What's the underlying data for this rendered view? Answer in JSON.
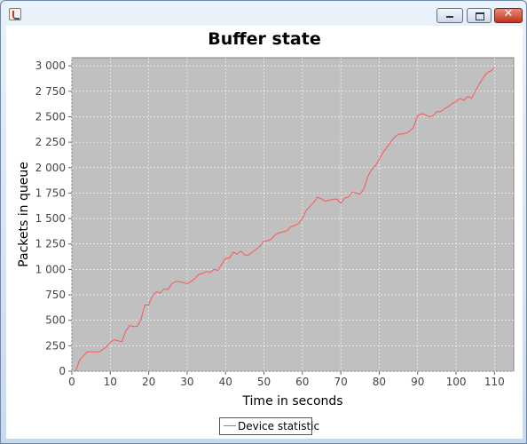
{
  "window": {
    "title": "",
    "icon": "java-cup-icon",
    "buttons": {
      "minimize_icon": "minimize-icon",
      "maximize_icon": "maximize-icon",
      "close_icon": "close-icon",
      "close_glyph": "✕"
    }
  },
  "chart_data": {
    "type": "line",
    "title": "Buffer state",
    "xlabel": "Time in seconds",
    "ylabel": "Packets in queue",
    "xlim": [
      0,
      115
    ],
    "ylim": [
      0,
      3080
    ],
    "xticks": [
      0,
      10,
      20,
      30,
      40,
      50,
      60,
      70,
      80,
      90,
      100,
      110
    ],
    "yticks": [
      0,
      250,
      500,
      750,
      1000,
      1250,
      1500,
      1750,
      2000,
      2250,
      2500,
      2750,
      3000
    ],
    "ytick_labels": [
      "0",
      "250",
      "500",
      "750",
      "1 000",
      "1 250",
      "1 500",
      "1 750",
      "2 000",
      "2 250",
      "2 500",
      "2 750",
      "3 000"
    ],
    "grid": true,
    "plot_background": "#c0c0c0",
    "grid_color": "#ffffff",
    "legend_position": "bottom-center",
    "series": [
      {
        "name": "Device statistic",
        "color": "#ff5555",
        "x": [
          1,
          2,
          3,
          4,
          5,
          6,
          7,
          8,
          9,
          10,
          11,
          12,
          13,
          14,
          15,
          16,
          17,
          18,
          19,
          20,
          21,
          22,
          23,
          24,
          25,
          26,
          27,
          28,
          29,
          30,
          31,
          32,
          33,
          34,
          35,
          36,
          37,
          38,
          39,
          40,
          41,
          42,
          43,
          44,
          45,
          46,
          47,
          48,
          49,
          50,
          51,
          52,
          53,
          54,
          55,
          56,
          57,
          58,
          59,
          60,
          61,
          62,
          63,
          64,
          65,
          66,
          67,
          68,
          69,
          70,
          71,
          72,
          73,
          74,
          75,
          76,
          77,
          78,
          79,
          80,
          81,
          82,
          83,
          84,
          85,
          86,
          87,
          88,
          89,
          90,
          91,
          92,
          93,
          94,
          95,
          96,
          97,
          98,
          99,
          100,
          101,
          102,
          103,
          104,
          105,
          106,
          107,
          108,
          109,
          110
        ],
        "y": [
          0,
          110,
          150,
          190,
          190,
          190,
          190,
          210,
          240,
          280,
          310,
          300,
          290,
          390,
          450,
          440,
          440,
          510,
          650,
          650,
          740,
          780,
          770,
          810,
          800,
          860,
          880,
          880,
          870,
          860,
          880,
          910,
          950,
          960,
          980,
          970,
          1000,
          990,
          1050,
          1110,
          1110,
          1170,
          1150,
          1180,
          1140,
          1140,
          1170,
          1200,
          1230,
          1280,
          1280,
          1300,
          1340,
          1360,
          1370,
          1380,
          1420,
          1430,
          1450,
          1500,
          1580,
          1620,
          1660,
          1710,
          1690,
          1670,
          1680,
          1690,
          1690,
          1650,
          1700,
          1710,
          1760,
          1750,
          1740,
          1790,
          1910,
          1980,
          2020,
          2080,
          2150,
          2200,
          2250,
          2300,
          2330,
          2330,
          2340,
          2360,
          2400,
          2510,
          2530,
          2520,
          2500,
          2510,
          2550,
          2550,
          2580,
          2600,
          2630,
          2650,
          2680,
          2660,
          2700,
          2680,
          2750,
          2820,
          2880,
          2930,
          2950,
          2980
        ]
      }
    ]
  }
}
